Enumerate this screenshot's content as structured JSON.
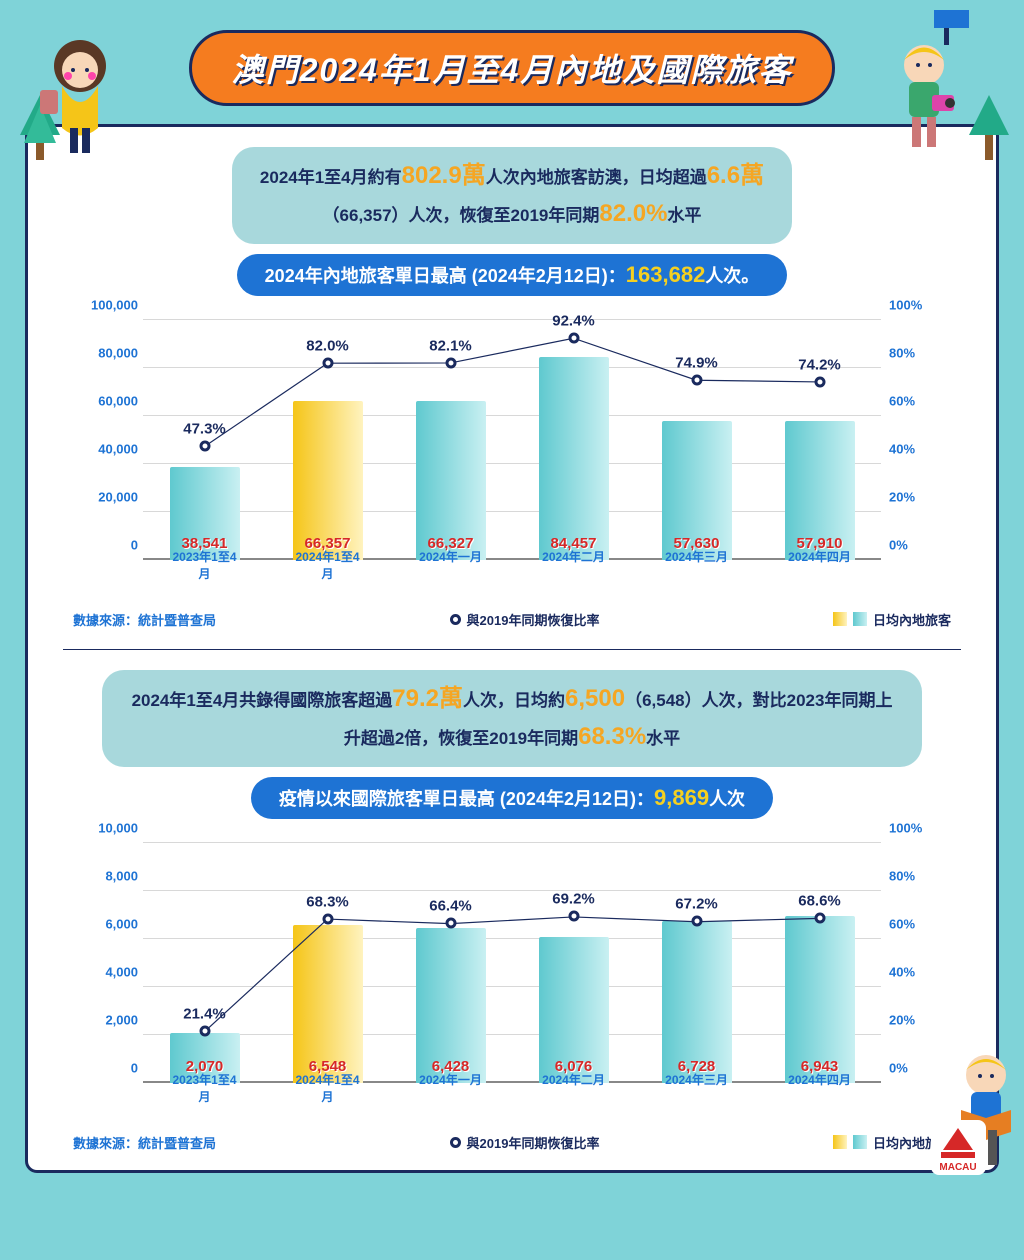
{
  "title": "澳門2024年1月至4月內地及國際旅客",
  "colors": {
    "background": "#7fd3d8",
    "panel_border": "#1a2a5e",
    "title_bg": "#f57c1f",
    "pill_bg": "#a8d8dc",
    "highlight_bg": "#1e73d4",
    "accent_text": "#f5a623",
    "highlight_num": "#f5d020",
    "bar_value": "#d62828",
    "axis_label": "#1e73d4",
    "line": "#1a2a5e",
    "bar_aqua_from": "#5fc9cf",
    "bar_aqua_to": "#c9f0f2",
    "bar_gold_from": "#f5c518",
    "bar_gold_to": "#fff3bf",
    "grid": "#d8d8d8"
  },
  "section1": {
    "summary": {
      "t1": "2024年1至4月約有",
      "v1": "802.9萬",
      "t2": "人次內地旅客訪澳，日均超過",
      "v2": "6.6萬",
      "t3": "（66,357）人次，恢復至2019年同期",
      "v3": "82.0%",
      "t4": "水平"
    },
    "highlight": {
      "label": "2024年內地旅客單日最高 (2024年2月12日)：",
      "value": "163,682",
      "suffix": "人次。"
    },
    "chart": {
      "type": "bar+line",
      "y_left": {
        "min": 0,
        "max": 100000,
        "step": 20000,
        "ticks": [
          "0",
          "20,000",
          "40,000",
          "60,000",
          "80,000",
          "100,000"
        ]
      },
      "y_right": {
        "min": 0,
        "max": 100,
        "step": 20,
        "ticks": [
          "0%",
          "20%",
          "40%",
          "60%",
          "80%",
          "100%"
        ]
      },
      "categories": [
        "2023年1至4月",
        "2024年1至4月",
        "2024年一月",
        "2024年二月",
        "2024年三月",
        "2024年四月"
      ],
      "bars": {
        "values": [
          38541,
          66357,
          66327,
          84457,
          57630,
          57910
        ],
        "labels": [
          "38,541",
          "66,357",
          "66,327",
          "84,457",
          "57,630",
          "57,910"
        ],
        "highlighted_index": 1
      },
      "line": {
        "values_pct": [
          47.3,
          82.0,
          82.1,
          92.4,
          74.9,
          74.2
        ],
        "labels": [
          "47.3%",
          "82.0%",
          "82.1%",
          "92.4%",
          "74.9%",
          "74.2%"
        ]
      }
    }
  },
  "section2": {
    "summary": {
      "t1": "2024年1至4月共錄得國際旅客超過",
      "v1": "79.2萬",
      "t2": "人次，日均約",
      "v2": "6,500",
      "t3": "（6,548）人次，對比2023年同期上升超過2倍，恢復至2019年同期",
      "v3": "68.3%",
      "t4": "水平"
    },
    "highlight": {
      "label": "疫情以來國際旅客單日最高 (2024年2月12日)：",
      "value": "9,869",
      "suffix": "人次"
    },
    "chart": {
      "type": "bar+line",
      "y_left": {
        "min": 0,
        "max": 10000,
        "step": 2000,
        "ticks": [
          "0",
          "2,000",
          "4,000",
          "6,000",
          "8,000",
          "10,000"
        ]
      },
      "y_right": {
        "min": 0,
        "max": 100,
        "step": 20,
        "ticks": [
          "0%",
          "20%",
          "40%",
          "60%",
          "80%",
          "100%"
        ]
      },
      "categories": [
        "2023年1至4月",
        "2024年1至4月",
        "2024年一月",
        "2024年二月",
        "2024年三月",
        "2024年四月"
      ],
      "bars": {
        "values": [
          2070,
          6548,
          6428,
          6076,
          6728,
          6943
        ],
        "labels": [
          "2,070",
          "6,548",
          "6,428",
          "6,076",
          "6,728",
          "6,943"
        ],
        "highlighted_index": 1
      },
      "line": {
        "values_pct": [
          21.4,
          68.3,
          66.4,
          69.2,
          67.2,
          68.6
        ],
        "labels": [
          "21.4%",
          "68.3%",
          "66.4%",
          "69.2%",
          "67.2%",
          "68.6%"
        ]
      }
    }
  },
  "legend": {
    "source": "數據來源：統計暨普查局",
    "line_label": "與2019年同期恢復比率",
    "bar_label": "日均內地旅客"
  }
}
